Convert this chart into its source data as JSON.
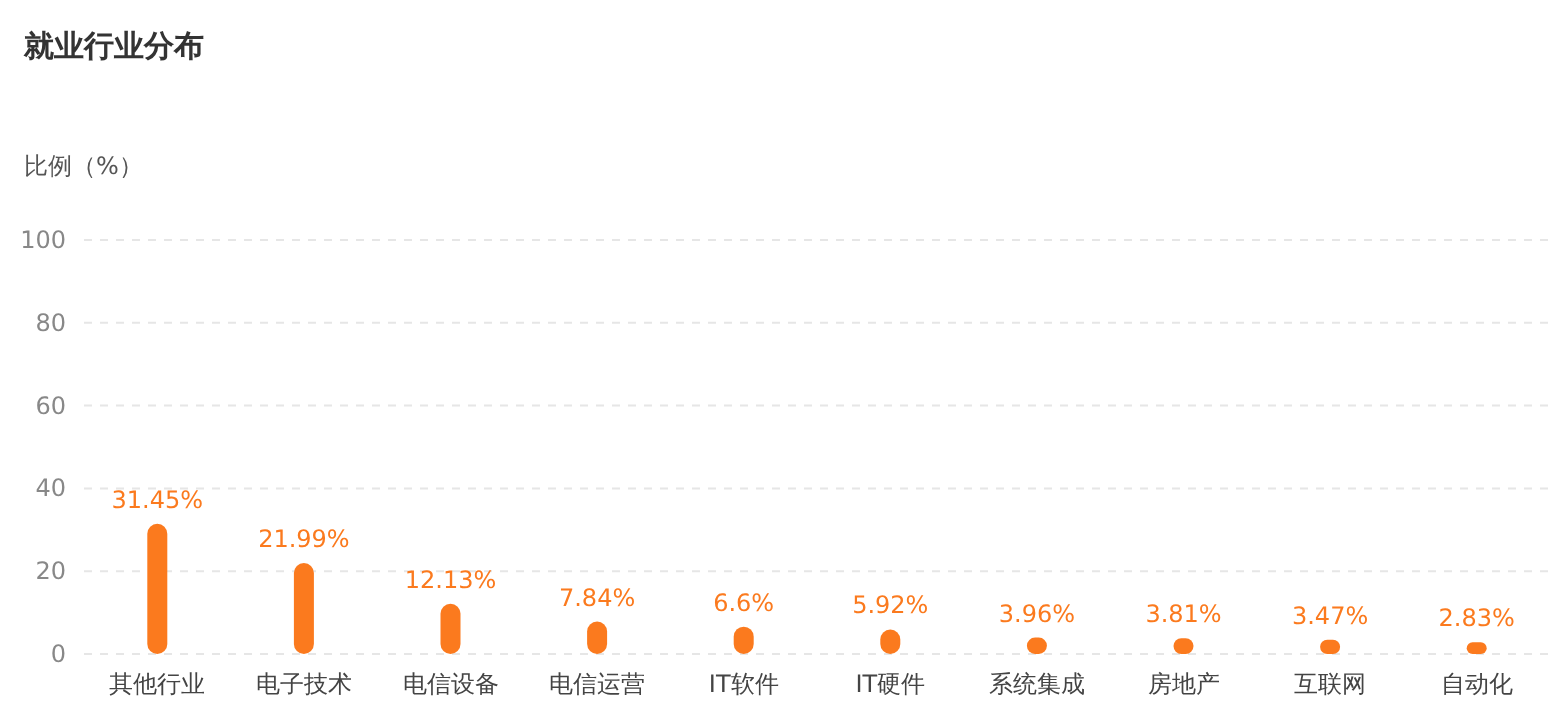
{
  "chart_data": {
    "type": "bar",
    "title": "就业行业分布",
    "ylabel": "比例（%）",
    "categories": [
      "其他行业",
      "电子技术",
      "电信设备",
      "电信运营",
      "IT软件",
      "IT硬件",
      "系统集成",
      "房地产",
      "互联网",
      "自动化"
    ],
    "values": [
      31.45,
      21.99,
      12.13,
      7.84,
      6.6,
      5.92,
      3.96,
      3.81,
      3.47,
      2.83
    ],
    "value_labels": [
      "31.45%",
      "21.99%",
      "12.13%",
      "7.84%",
      "6.6%",
      "5.92%",
      "3.96%",
      "3.81%",
      "3.47%",
      "2.83%"
    ],
    "color": "#fb7a1e",
    "ylim": [
      0,
      100
    ],
    "yticks": [
      0,
      20,
      40,
      60,
      80,
      100
    ],
    "grid": "y"
  }
}
